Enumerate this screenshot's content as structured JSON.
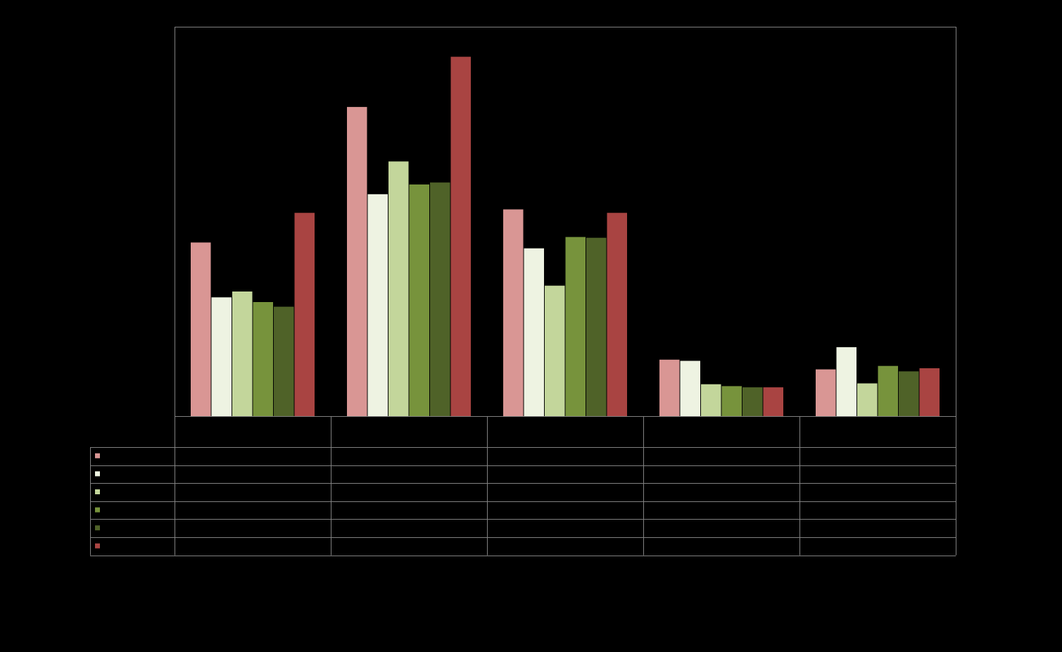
{
  "chart_data": {
    "type": "bar",
    "title": "",
    "xlabel": "",
    "ylabel": "",
    "ylim": [
      0,
      100
    ],
    "grid": false,
    "legend": "data-table",
    "categories": [
      "",
      "",
      "",
      "",
      ""
    ],
    "series": [
      {
        "color": "#D99694",
        "values": [
          44.6,
          79.4,
          53.1,
          14.5,
          12.0
        ]
      },
      {
        "color": "#EEF3E2",
        "values": [
          30.5,
          57.0,
          43.1,
          14.2,
          17.7
        ]
      },
      {
        "color": "#C3D69B",
        "values": [
          32.0,
          65.4,
          33.5,
          8.2,
          8.4
        ]
      },
      {
        "color": "#77933C",
        "values": [
          29.3,
          59.5,
          46.0,
          7.7,
          12.9
        ]
      },
      {
        "color": "#4F6228",
        "values": [
          28.1,
          60.0,
          45.8,
          7.4,
          11.5
        ]
      },
      {
        "color": "#A94442",
        "values": [
          52.2,
          92.3,
          52.2,
          7.4,
          12.3
        ]
      }
    ]
  }
}
